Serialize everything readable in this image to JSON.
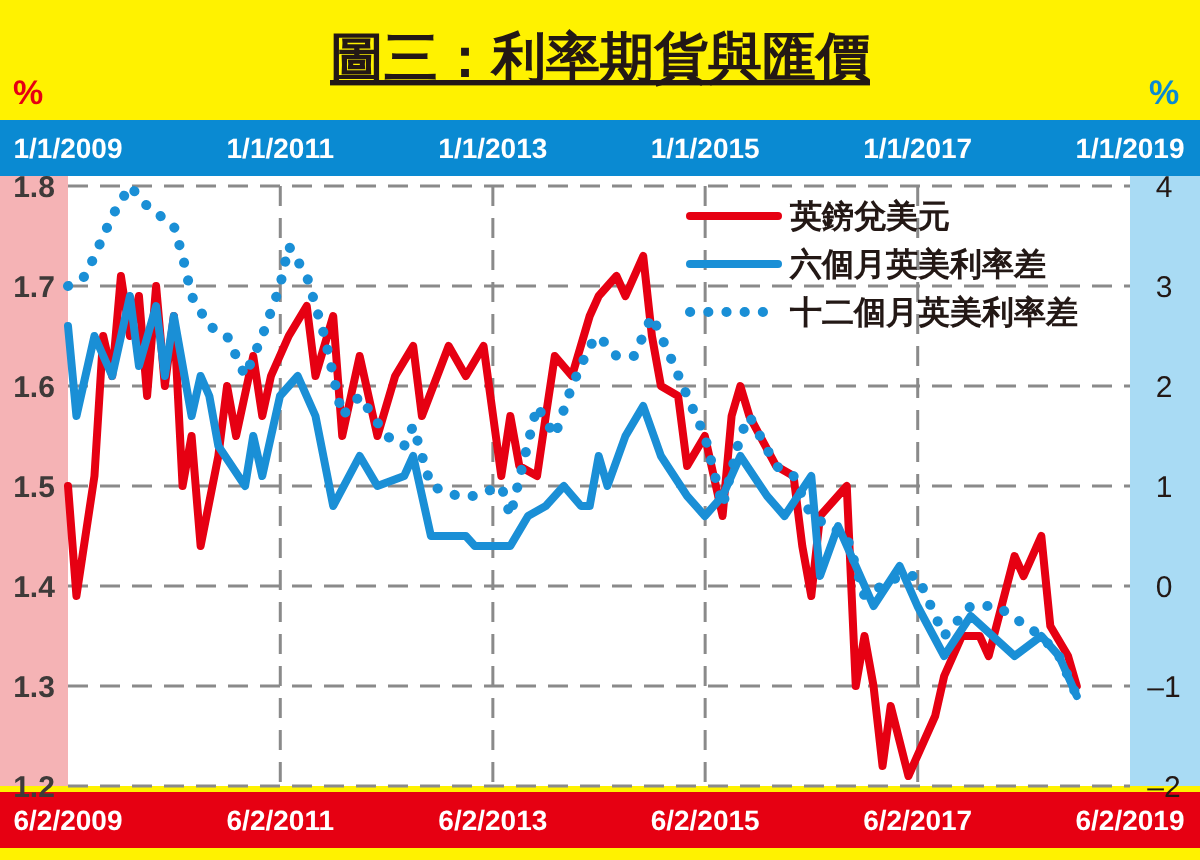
{
  "chart_data": {
    "type": "line",
    "title": "圖三：利率期貨與匯價",
    "ylabel": "%",
    "y2label": "%",
    "xlim": [
      "2009-06-02",
      "2019-06-02"
    ],
    "xticks": [
      {
        "value": "2009-06-02",
        "label": "6/2/2009"
      },
      {
        "value": "2011-06-02",
        "label": "6/2/2011"
      },
      {
        "value": "2013-06-02",
        "label": "6/2/2013"
      },
      {
        "value": "2015-06-02",
        "label": "6/2/2015"
      },
      {
        "value": "2017-06-02",
        "label": "6/2/2017"
      },
      {
        "value": "2019-06-02",
        "label": "6/2/2019"
      }
    ],
    "x2lim": [
      "2009-01-01",
      "2019-01-01"
    ],
    "x2ticks": [
      {
        "value": "2009-01-01",
        "label": "1/1/2009"
      },
      {
        "value": "2011-01-01",
        "label": "1/1/2011"
      },
      {
        "value": "2013-01-01",
        "label": "1/1/2013"
      },
      {
        "value": "2015-01-01",
        "label": "1/1/2015"
      },
      {
        "value": "2017-01-01",
        "label": "1/1/2017"
      },
      {
        "value": "2019-01-01",
        "label": "1/1/2019"
      }
    ],
    "ylim": [
      1.2,
      1.8
    ],
    "yticks": [
      1.2,
      1.3,
      1.4,
      1.5,
      1.6,
      1.7,
      1.8
    ],
    "y2lim": [
      -2,
      4
    ],
    "y2ticks": [
      {
        "value": -2,
        "label": "–2"
      },
      {
        "value": -1,
        "label": "–1"
      },
      0,
      1,
      2,
      3,
      4
    ],
    "grid": true,
    "legend": "top right",
    "series": [
      {
        "name": "英鎊兌美元",
        "color": "#e60012",
        "line_style": "solid",
        "x": [
          "2009-06-02",
          "2009-07",
          "2009-09",
          "2009-10",
          "2009-11",
          "2009-12",
          "2010-01",
          "2010-02",
          "2010-03",
          "2010-04",
          "2010-05",
          "2010-06",
          "2010-07",
          "2010-08",
          "2010-09",
          "2010-11",
          "2010-12",
          "2011-01",
          "2011-03",
          "2011-04",
          "2011-05",
          "2011-07",
          "2011-09",
          "2011-10",
          "2011-12",
          "2012-01",
          "2012-03",
          "2012-05",
          "2012-07",
          "2012-09",
          "2012-10",
          "2013-01",
          "2013-03",
          "2013-05",
          "2013-07",
          "2013-08",
          "2013-09",
          "2013-11",
          "2013-12",
          "2014-01",
          "2014-03",
          "2014-05",
          "2014-06",
          "2014-08",
          "2014-09",
          "2014-11",
          "2014-12",
          "2015-01",
          "2015-03",
          "2015-04",
          "2015-06",
          "2015-08",
          "2015-09",
          "2015-10",
          "2015-11",
          "2016-02",
          "2016-04",
          "2016-05",
          "2016-06",
          "2016-07",
          "2016-10",
          "2016-11",
          "2016-12",
          "2017-01",
          "2017-02",
          "2017-03",
          "2017-05",
          "2017-08",
          "2017-09",
          "2017-11",
          "2018-01",
          "2018-02",
          "2018-05",
          "2018-06",
          "2018-08",
          "2018-09",
          "2018-11",
          "2018-12"
        ],
        "values": [
          1.5,
          1.39,
          1.51,
          1.65,
          1.61,
          1.71,
          1.65,
          1.69,
          1.59,
          1.7,
          1.6,
          1.67,
          1.5,
          1.55,
          1.44,
          1.53,
          1.6,
          1.55,
          1.63,
          1.57,
          1.61,
          1.65,
          1.68,
          1.61,
          1.67,
          1.55,
          1.63,
          1.55,
          1.61,
          1.64,
          1.57,
          1.64,
          1.61,
          1.64,
          1.51,
          1.57,
          1.52,
          1.51,
          1.57,
          1.63,
          1.61,
          1.67,
          1.69,
          1.71,
          1.69,
          1.73,
          1.65,
          1.6,
          1.59,
          1.52,
          1.55,
          1.47,
          1.57,
          1.6,
          1.57,
          1.52,
          1.51,
          1.44,
          1.39,
          1.47,
          1.5,
          1.3,
          1.35,
          1.3,
          1.22,
          1.28,
          1.21,
          1.27,
          1.31,
          1.35,
          1.35,
          1.33,
          1.43,
          1.41,
          1.45,
          1.36,
          1.33,
          1.3
        ]
      },
      {
        "name": "六個月英美利率差",
        "color": "#1a8fd6",
        "line_style": "solid",
        "axis": "y2",
        "x": [
          "2009-06-02",
          "2009-07",
          "2009-09",
          "2009-11",
          "2010-01",
          "2010-02",
          "2010-04",
          "2010-05",
          "2010-06",
          "2010-08",
          "2010-09",
          "2010-10",
          "2010-11",
          "2011-02",
          "2011-03",
          "2011-04",
          "2011-06",
          "2011-08",
          "2011-10",
          "2011-12",
          "2012-03",
          "2012-05",
          "2012-08",
          "2012-09",
          "2012-11",
          "2013-03",
          "2013-04",
          "2013-08",
          "2013-10",
          "2013-12",
          "2014-02",
          "2014-04",
          "2014-05",
          "2014-06",
          "2014-07",
          "2014-09",
          "2014-11",
          "2015-01",
          "2015-04",
          "2015-06",
          "2015-08",
          "2015-10",
          "2016-01",
          "2016-03",
          "2016-06",
          "2016-07",
          "2016-09",
          "2017-01",
          "2017-04",
          "2017-06",
          "2017-09",
          "2017-12",
          "2018-05",
          "2018-08",
          "2018-10",
          "2018-12"
        ],
        "values": [
          2.6,
          1.7,
          2.5,
          2.1,
          2.9,
          2.2,
          2.8,
          2.1,
          2.7,
          1.7,
          2.1,
          1.9,
          1.4,
          1.0,
          1.5,
          1.1,
          1.9,
          2.1,
          1.7,
          0.8,
          1.3,
          1.0,
          1.1,
          1.3,
          0.5,
          0.5,
          0.4,
          0.4,
          0.7,
          0.8,
          1.0,
          0.8,
          0.8,
          1.3,
          1.0,
          1.5,
          1.8,
          1.3,
          0.9,
          0.7,
          0.9,
          1.3,
          0.9,
          0.7,
          1.1,
          0.1,
          0.6,
          -0.2,
          0.2,
          -0.2,
          -0.7,
          -0.3,
          -0.7,
          -0.5,
          -0.7,
          -1.1
        ]
      },
      {
        "name": "十二個月英美利率差",
        "color": "#1a8fd6",
        "line_style": "dotted",
        "axis": "y2",
        "x": [
          "2009-06-02",
          "2009-08",
          "2009-09",
          "2009-11",
          "2010-01",
          "2010-03",
          "2010-06",
          "2010-07",
          "2010-08",
          "2010-10",
          "2010-12",
          "2011-02",
          "2011-04",
          "2011-06",
          "2011-07",
          "2011-09",
          "2011-11",
          "2012-01",
          "2012-03",
          "2012-06",
          "2012-08",
          "2012-09",
          "2012-11",
          "2013-02",
          "2013-04",
          "2013-07",
          "2013-08",
          "2013-11",
          "2014-01",
          "2014-03",
          "2014-05",
          "2014-06",
          "2014-08",
          "2014-10",
          "2014-12",
          "2015-02",
          "2015-04",
          "2015-06",
          "2015-08",
          "2015-10",
          "2015-11",
          "2016-02",
          "2016-04",
          "2016-06",
          "2016-10",
          "2016-12",
          "2017-04",
          "2017-06",
          "2017-09",
          "2017-12",
          "2018-03",
          "2018-08",
          "2018-10",
          "2018-12"
        ],
        "values": [
          3.0,
          3.1,
          3.3,
          3.7,
          4.0,
          3.8,
          3.6,
          3.3,
          2.9,
          2.6,
          2.5,
          2.1,
          2.5,
          3.0,
          3.4,
          3.1,
          2.5,
          1.7,
          1.9,
          1.5,
          1.4,
          1.6,
          1.0,
          0.9,
          0.9,
          1.0,
          0.7,
          1.8,
          1.5,
          2.0,
          2.4,
          2.5,
          2.3,
          2.3,
          2.7,
          2.3,
          1.9,
          1.5,
          0.8,
          1.5,
          1.7,
          1.2,
          1.1,
          0.7,
          0.5,
          -0.1,
          0.1,
          0.1,
          -0.5,
          -0.2,
          -0.2,
          -0.5,
          -0.7,
          -1.1
        ]
      }
    ]
  }
}
